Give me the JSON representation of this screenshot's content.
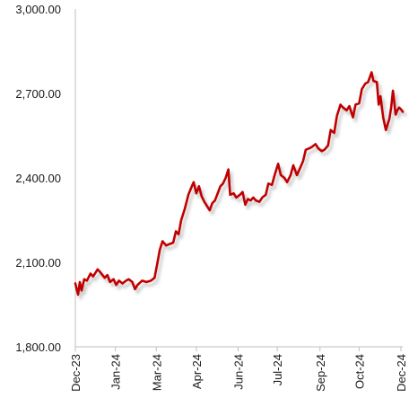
{
  "chart_data": {
    "type": "line",
    "title": "",
    "xlabel": "",
    "ylabel": "",
    "ylim": [
      1800,
      3000
    ],
    "yticks": [
      1800,
      2100,
      2400,
      2700,
      3000
    ],
    "ytick_labels": [
      "1,800.00",
      "2,100.00",
      "2,400.00",
      "2,700.00",
      "3,000.00"
    ],
    "xlim": [
      "2023-12-01",
      "2024-12-03"
    ],
    "xtick_labels": [
      {
        "date": "2023-12-01",
        "label": "Dec-23"
      },
      {
        "date": "2024-01-15",
        "label": "Jan-24"
      },
      {
        "date": "2024-03-01",
        "label": "Mar-24"
      },
      {
        "date": "2024-04-15",
        "label": "Apr-24"
      },
      {
        "date": "2024-06-01",
        "label": "Jun-24"
      },
      {
        "date": "2024-07-15",
        "label": "Jul-24"
      },
      {
        "date": "2024-09-01",
        "label": "Sep-24"
      },
      {
        "date": "2024-10-15",
        "label": "Oct-24"
      },
      {
        "date": "2024-12-01",
        "label": "Dec-24"
      }
    ],
    "grid": false,
    "legend": "none",
    "colors": {
      "line": "#c00000",
      "shadow": "#cccccc",
      "axis": "#bfbfbf"
    },
    "series": [
      {
        "color": "#c00000",
        "points": [
          [
            "2023-12-01",
            2025
          ],
          [
            "2023-12-04",
            1985
          ],
          [
            "2023-12-06",
            2030
          ],
          [
            "2023-12-08",
            2000
          ],
          [
            "2023-12-11",
            2040
          ],
          [
            "2023-12-14",
            2035
          ],
          [
            "2023-12-18",
            2060
          ],
          [
            "2023-12-21",
            2050
          ],
          [
            "2023-12-26",
            2075
          ],
          [
            "2023-12-29",
            2065
          ],
          [
            "2024-01-03",
            2045
          ],
          [
            "2024-01-06",
            2055
          ],
          [
            "2024-01-09",
            2030
          ],
          [
            "2024-01-13",
            2040
          ],
          [
            "2024-01-16",
            2020
          ],
          [
            "2024-01-19",
            2035
          ],
          [
            "2024-01-23",
            2025
          ],
          [
            "2024-01-27",
            2035
          ],
          [
            "2024-01-30",
            2040
          ],
          [
            "2024-02-03",
            2030
          ],
          [
            "2024-02-06",
            2005
          ],
          [
            "2024-02-09",
            2020
          ],
          [
            "2024-02-14",
            2035
          ],
          [
            "2024-02-19",
            2030
          ],
          [
            "2024-02-24",
            2035
          ],
          [
            "2024-02-28",
            2045
          ],
          [
            "2024-03-02",
            2095
          ],
          [
            "2024-03-05",
            2145
          ],
          [
            "2024-03-08",
            2175
          ],
          [
            "2024-03-12",
            2160
          ],
          [
            "2024-03-16",
            2165
          ],
          [
            "2024-03-20",
            2170
          ],
          [
            "2024-03-23",
            2210
          ],
          [
            "2024-03-26",
            2200
          ],
          [
            "2024-03-29",
            2250
          ],
          [
            "2024-04-02",
            2290
          ],
          [
            "2024-04-06",
            2340
          ],
          [
            "2024-04-10",
            2370
          ],
          [
            "2024-04-12",
            2385
          ],
          [
            "2024-04-15",
            2345
          ],
          [
            "2024-04-18",
            2370
          ],
          [
            "2024-04-21",
            2335
          ],
          [
            "2024-04-24",
            2315
          ],
          [
            "2024-04-27",
            2300
          ],
          [
            "2024-04-30",
            2285
          ],
          [
            "2024-05-03",
            2310
          ],
          [
            "2024-05-06",
            2320
          ],
          [
            "2024-05-09",
            2345
          ],
          [
            "2024-05-12",
            2370
          ],
          [
            "2024-05-15",
            2380
          ],
          [
            "2024-05-18",
            2400
          ],
          [
            "2024-05-21",
            2430
          ],
          [
            "2024-05-23",
            2340
          ],
          [
            "2024-05-27",
            2345
          ],
          [
            "2024-05-30",
            2330
          ],
          [
            "2024-06-03",
            2340
          ],
          [
            "2024-06-06",
            2350
          ],
          [
            "2024-06-09",
            2305
          ],
          [
            "2024-06-12",
            2325
          ],
          [
            "2024-06-15",
            2320
          ],
          [
            "2024-06-18",
            2330
          ],
          [
            "2024-06-21",
            2320
          ],
          [
            "2024-06-25",
            2315
          ],
          [
            "2024-06-28",
            2330
          ],
          [
            "2024-07-02",
            2340
          ],
          [
            "2024-07-05",
            2380
          ],
          [
            "2024-07-09",
            2375
          ],
          [
            "2024-07-12",
            2410
          ],
          [
            "2024-07-16",
            2450
          ],
          [
            "2024-07-19",
            2410
          ],
          [
            "2024-07-23",
            2400
          ],
          [
            "2024-07-26",
            2385
          ],
          [
            "2024-07-30",
            2410
          ],
          [
            "2024-08-02",
            2445
          ],
          [
            "2024-08-06",
            2410
          ],
          [
            "2024-08-09",
            2430
          ],
          [
            "2024-08-13",
            2460
          ],
          [
            "2024-08-16",
            2500
          ],
          [
            "2024-08-20",
            2505
          ],
          [
            "2024-08-23",
            2510
          ],
          [
            "2024-08-27",
            2520
          ],
          [
            "2024-08-30",
            2505
          ],
          [
            "2024-09-03",
            2495
          ],
          [
            "2024-09-06",
            2500
          ],
          [
            "2024-09-10",
            2515
          ],
          [
            "2024-09-13",
            2570
          ],
          [
            "2024-09-17",
            2560
          ],
          [
            "2024-09-20",
            2620
          ],
          [
            "2024-09-24",
            2660
          ],
          [
            "2024-09-27",
            2650
          ],
          [
            "2024-10-01",
            2640
          ],
          [
            "2024-10-04",
            2655
          ],
          [
            "2024-10-08",
            2615
          ],
          [
            "2024-10-11",
            2660
          ],
          [
            "2024-10-15",
            2665
          ],
          [
            "2024-10-18",
            2715
          ],
          [
            "2024-10-22",
            2735
          ],
          [
            "2024-10-25",
            2740
          ],
          [
            "2024-10-29",
            2775
          ],
          [
            "2024-10-31",
            2745
          ],
          [
            "2024-11-04",
            2740
          ],
          [
            "2024-11-06",
            2660
          ],
          [
            "2024-11-08",
            2690
          ],
          [
            "2024-11-11",
            2615
          ],
          [
            "2024-11-14",
            2570
          ],
          [
            "2024-11-18",
            2610
          ],
          [
            "2024-11-20",
            2650
          ],
          [
            "2024-11-22",
            2710
          ],
          [
            "2024-11-25",
            2625
          ],
          [
            "2024-11-27",
            2640
          ],
          [
            "2024-11-29",
            2650
          ],
          [
            "2024-12-02",
            2640
          ],
          [
            "2024-12-03",
            2635
          ]
        ]
      }
    ]
  }
}
